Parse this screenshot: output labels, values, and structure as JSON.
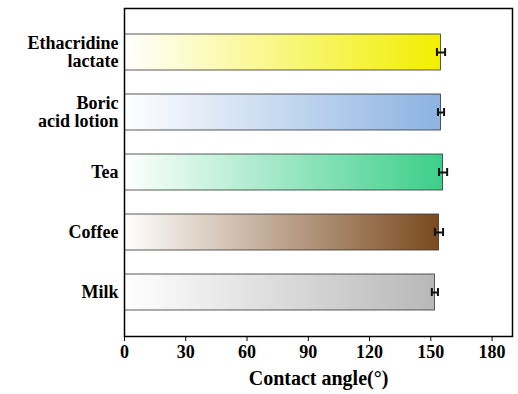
{
  "chart_data": {
    "type": "bar",
    "orientation": "horizontal",
    "categories": [
      "Ethacridine lactate",
      "Boric acid lotion",
      "Tea",
      "Coffee",
      "Milk"
    ],
    "values": [
      155,
      155,
      156,
      154,
      152
    ],
    "errors": [
      2,
      1.5,
      2,
      2,
      1.5
    ],
    "colors": [
      "#f2ee00",
      "#8cb3e2",
      "#3ccf8a",
      "#7b4a1e",
      "#b8b8b8"
    ],
    "x_label": "Contact angle(°)",
    "xlim": [
      0,
      190
    ],
    "xticks": [
      0,
      30,
      60,
      90,
      120,
      150,
      180
    ]
  }
}
